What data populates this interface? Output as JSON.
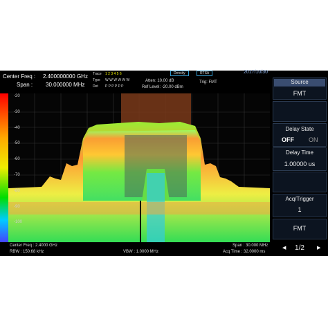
{
  "header": {
    "center_freq_label": "Center Freq :",
    "center_freq": "2.400000000 GHz",
    "span_label": "Span :",
    "span": "30.000000 MHz",
    "trace_label": "Trace",
    "trace_numbers": "1 2 3 4 5 6",
    "type_label": "Type",
    "type_values": "W W W W W W",
    "det_label": "Det",
    "det_values": "P P P P P P",
    "atten": "Atten: 10.00 dB",
    "ref_level": "Ref Level: -20.00 dBm",
    "trig": "Trig: FMT",
    "mode": "Density",
    "analyzer": "RTSA",
    "date": "2017/10/30"
  },
  "plot": {
    "y_labels": [
      "-20",
      "-30",
      "-40",
      "-50",
      "-60",
      "-70",
      "-80",
      "-90",
      "-100"
    ]
  },
  "footer": {
    "center_freq": "Center Freq : 2.4000 GHz",
    "span": "Span : 30.000 MHz",
    "rbw": "RBW : 150.68 kHz",
    "vbw": "VBW : 1.0000 MHz",
    "acq_time": "Acq Time : 32.0000 ms"
  },
  "menu": {
    "source_title": "Source",
    "source_value": "FMT",
    "delay_state_title": "Delay State",
    "delay_off": "OFF",
    "delay_on": "ON",
    "delay_time_title": "Delay Time",
    "delay_time_value": "1.00000 us",
    "acq_trigger_title": "Acq/Trigger",
    "acq_trigger_value": "1",
    "fmt_button": "FMT",
    "page": "1/2"
  }
}
